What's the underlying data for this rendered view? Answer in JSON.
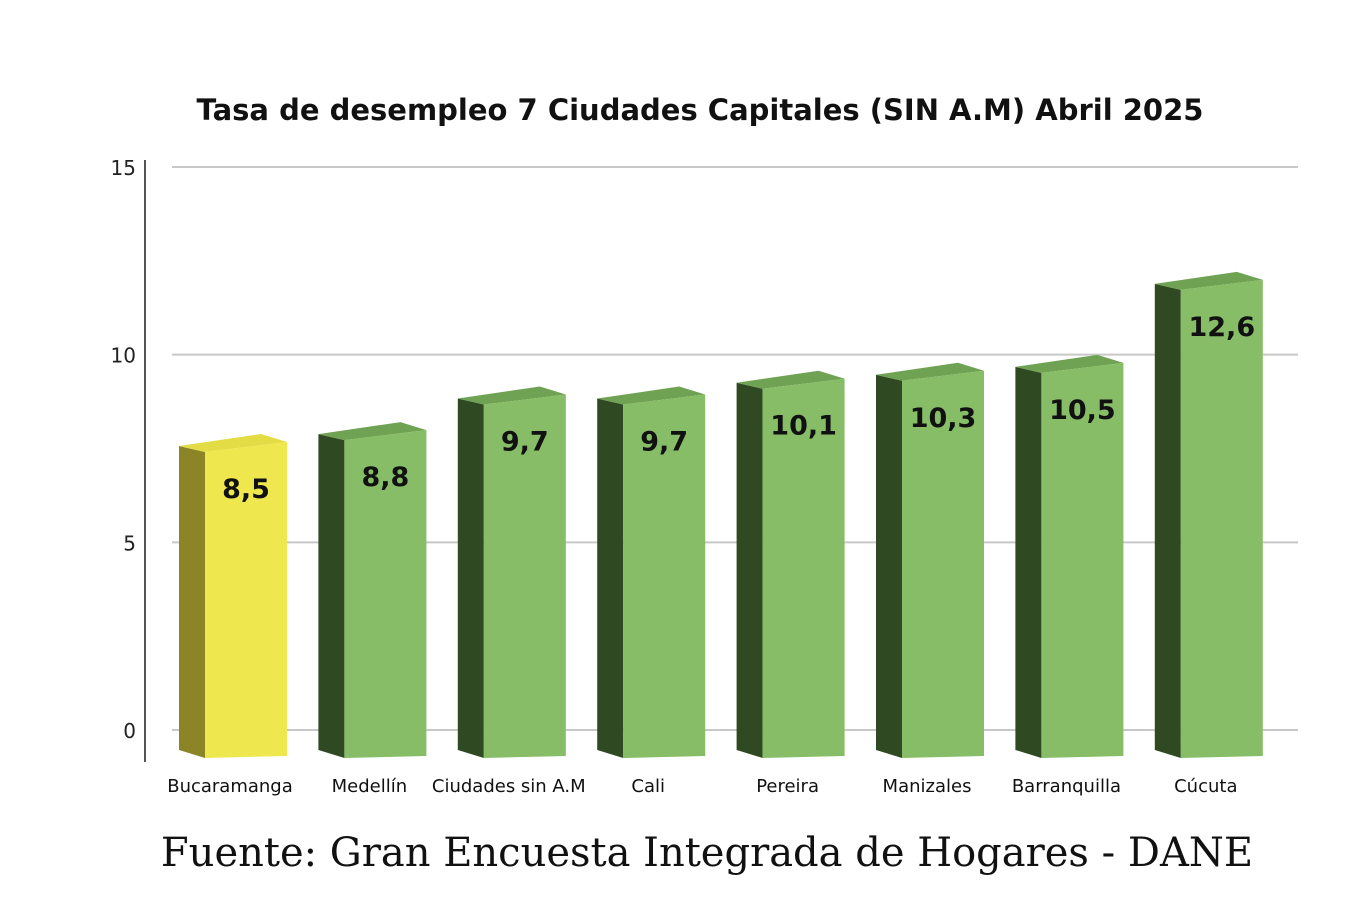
{
  "chart_data": {
    "type": "bar",
    "title": "Tasa de desempleo 7 Ciudades Capitales (SIN A.M) Abril 2025",
    "categories": [
      "Bucaramanga",
      "Medellín",
      "Ciudades sin A.M",
      "Cali",
      "Pereira",
      "Manizales",
      "Barranquilla",
      "Cúcuta"
    ],
    "values": [
      8.5,
      8.8,
      9.7,
      9.7,
      10.1,
      10.3,
      10.5,
      12.6
    ],
    "data_labels": [
      "8,5",
      "8,8",
      "9,7",
      "9,7",
      "10,1",
      "10,3",
      "10,5",
      "12,6"
    ],
    "ylim": [
      0,
      15
    ],
    "yticks": [
      "0",
      "5",
      "10",
      "15"
    ],
    "ytick_values": [
      0,
      5,
      10,
      15
    ],
    "grid": true,
    "xlabel": "",
    "ylabel": "",
    "highlight_index": 0,
    "colors": {
      "highlight_front": "#eee84e",
      "highlight_side": "#8c8528",
      "highlight_top": "#e3dc45",
      "front": "#86bd66",
      "side": "#2f4a22",
      "top": "#6fa252",
      "grid": "#c8c8c8"
    },
    "source": "Fuente: Gran Encuesta Integrada de Hogares - DANE"
  }
}
